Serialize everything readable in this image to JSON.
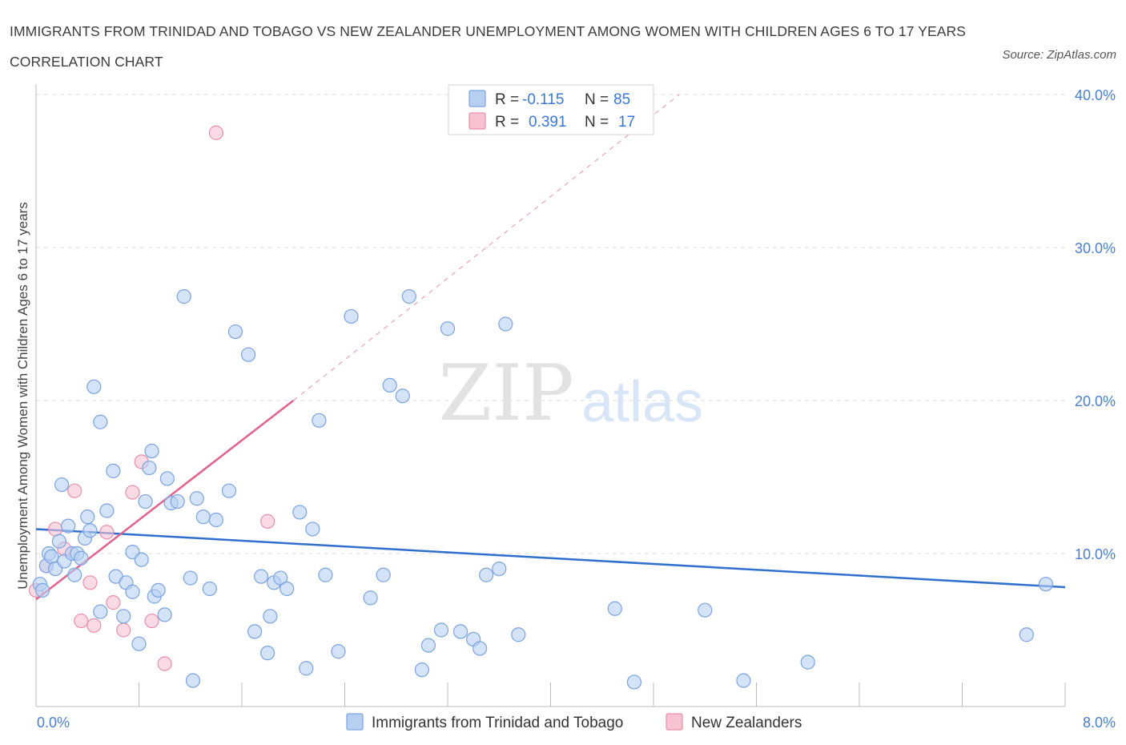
{
  "title": "IMMIGRANTS FROM TRINIDAD AND TOBAGO VS NEW ZEALANDER UNEMPLOYMENT AMONG WOMEN WITH CHILDREN AGES 6 TO 17 YEARS CORRELATION CHART",
  "source": "Source: ZipAtlas.com",
  "watermark": {
    "zip": "ZIP",
    "atlas": "atlas"
  },
  "legend": {
    "rows": [
      {
        "r_label": "R =",
        "r_value": "-0.115",
        "n_label": "N =",
        "n_value": "85"
      },
      {
        "r_label": "R =",
        "r_value": "0.391",
        "n_label": "N =",
        "n_value": "17"
      }
    ]
  },
  "colors": {
    "blue_fill": "#b7d0f2",
    "blue_stroke": "#7aa3e0",
    "blue_line": "#2f6fcd",
    "pink_fill": "#f7c3d3",
    "pink_stroke": "#e98fab",
    "pink_line": "#e0628e",
    "tick_label": "#4a7fd0",
    "grid": "#dddddd"
  },
  "chart_data": {
    "type": "scatter",
    "title": "IMMIGRANTS FROM TRINIDAD AND TOBAGO VS NEW ZEALANDER UNEMPLOYMENT AMONG WOMEN WITH CHILDREN AGES 6 TO 17 YEARS CORRELATION CHART",
    "xlabel": "",
    "ylabel": "Unemployment Among Women with Children Ages 6 to 17 years",
    "xlim": [
      0,
      8
    ],
    "ylim": [
      0,
      40
    ],
    "x_tick_labels": [
      {
        "value": 0,
        "label": "0.0%"
      },
      {
        "value": 8,
        "label": "8.0%"
      }
    ],
    "y_tick_labels": [
      {
        "value": 10,
        "label": "10.0%"
      },
      {
        "value": 20,
        "label": "20.0%"
      },
      {
        "value": 30,
        "label": "30.0%"
      },
      {
        "value": 40,
        "label": "40.0%"
      }
    ],
    "grid": true,
    "legend_position": "top-center",
    "series": [
      {
        "name": "Immigrants from Trinidad and Tobago",
        "color": "#b7d0f2",
        "trend": {
          "x": [
            0,
            8
          ],
          "y": [
            11.6,
            7.8
          ],
          "style": "solid"
        },
        "x": [
          0.03,
          0.05,
          0.08,
          0.1,
          0.12,
          0.15,
          0.18,
          0.2,
          0.22,
          0.25,
          0.28,
          0.3,
          0.32,
          0.35,
          0.38,
          0.4,
          0.42,
          0.45,
          0.5,
          0.5,
          0.55,
          0.6,
          0.62,
          0.68,
          0.7,
          0.75,
          0.75,
          0.8,
          0.82,
          0.85,
          0.88,
          0.9,
          0.92,
          0.95,
          1.0,
          1.02,
          1.05,
          1.1,
          1.15,
          1.2,
          1.22,
          1.25,
          1.3,
          1.35,
          1.4,
          1.5,
          1.55,
          1.65,
          1.7,
          1.75,
          1.8,
          1.82,
          1.85,
          1.9,
          1.95,
          2.05,
          2.1,
          2.15,
          2.2,
          2.25,
          2.35,
          2.45,
          2.6,
          2.7,
          2.75,
          2.85,
          2.9,
          3.0,
          3.05,
          3.15,
          3.2,
          3.3,
          3.4,
          3.45,
          3.5,
          3.6,
          3.65,
          3.75,
          4.5,
          4.65,
          5.2,
          5.5,
          6.0,
          7.7,
          7.85
        ],
        "y": [
          8.0,
          7.6,
          9.2,
          10.0,
          9.8,
          9.0,
          10.8,
          14.5,
          9.5,
          11.8,
          10.0,
          8.6,
          10.0,
          9.7,
          11.0,
          12.4,
          11.5,
          20.9,
          18.6,
          6.2,
          12.8,
          15.4,
          8.5,
          5.9,
          8.1,
          10.1,
          7.5,
          4.1,
          9.6,
          13.4,
          15.6,
          16.7,
          7.2,
          7.6,
          6.0,
          14.9,
          13.3,
          13.4,
          26.8,
          8.4,
          1.7,
          13.6,
          12.4,
          7.7,
          12.2,
          14.1,
          24.5,
          23.0,
          4.9,
          8.5,
          3.5,
          5.9,
          8.1,
          8.4,
          7.7,
          12.7,
          2.5,
          11.6,
          18.7,
          8.6,
          3.6,
          25.5,
          7.1,
          8.6,
          21.0,
          20.3,
          26.8,
          2.4,
          4.0,
          5.0,
          24.7,
          4.9,
          4.4,
          3.8,
          8.6,
          9.0,
          25.0,
          4.7,
          6.4,
          1.6,
          6.3,
          1.7,
          2.9,
          4.7,
          8.0
        ]
      },
      {
        "name": "New Zealanders",
        "color": "#f7c3d3",
        "trend": {
          "x": [
            0,
            2.0
          ],
          "y": [
            7.0,
            20.0
          ],
          "style": "solid",
          "extension": {
            "x": [
              2.0,
              5.0
            ],
            "y": [
              20.0,
              40.0
            ],
            "style": "dashed"
          }
        },
        "x": [
          0.0,
          0.08,
          0.15,
          0.22,
          0.3,
          0.35,
          0.42,
          0.45,
          0.55,
          0.6,
          0.68,
          0.75,
          0.82,
          0.9,
          1.0,
          1.4,
          1.8
        ],
        "y": [
          7.6,
          9.2,
          11.6,
          10.3,
          14.1,
          5.6,
          8.1,
          5.3,
          11.4,
          6.8,
          5.0,
          14.0,
          16.0,
          5.6,
          2.8,
          37.5,
          12.1
        ]
      }
    ]
  }
}
